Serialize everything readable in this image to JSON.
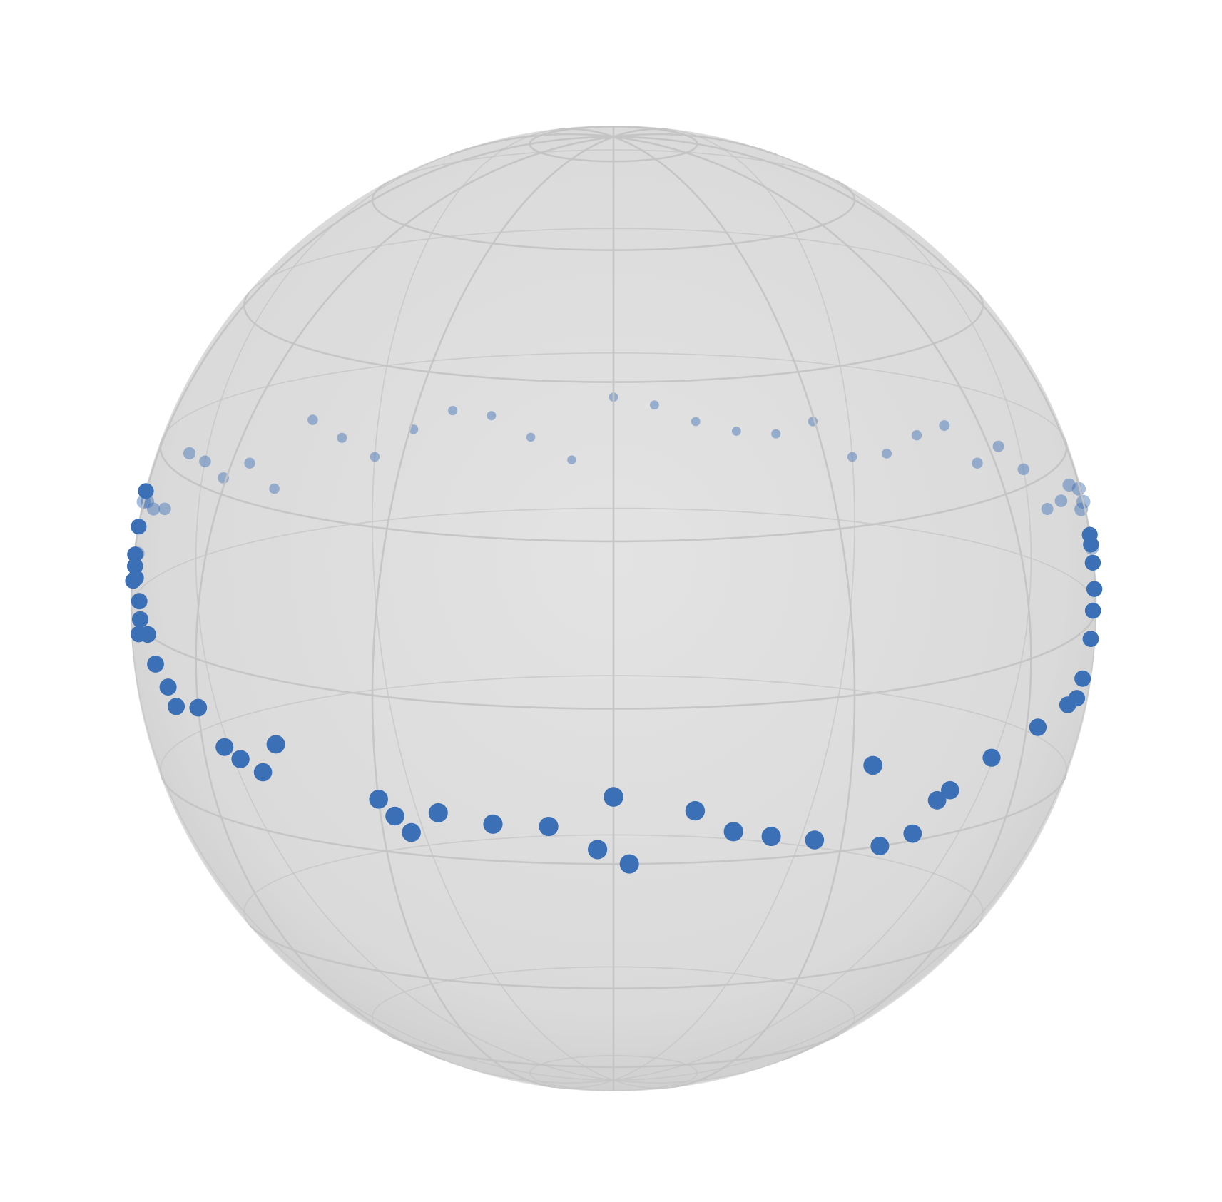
{
  "chart_data": {
    "type": "scatter",
    "projection": "3d-sphere",
    "title": "",
    "xlabel": "",
    "ylabel": "",
    "zlabel": "",
    "grid": true,
    "legend": "none",
    "sphere": {
      "fill_color": "#d9d9d9",
      "grid_color": "#c4c4c4",
      "latitude_lines_deg": [
        -80,
        -60,
        -40,
        -20,
        0,
        20,
        40,
        60,
        80
      ],
      "longitude_lines_deg": [
        0,
        30,
        60,
        90,
        120,
        150,
        180,
        210,
        240,
        270,
        300,
        330
      ]
    },
    "view": {
      "elevation_deg": 12,
      "azimuth_deg": 0
    },
    "marker_color": "#3b6fb6",
    "series": [
      {
        "points_lon_lat_deg": [
          [
            -90,
            10
          ],
          [
            -84,
            5
          ],
          [
            -80,
            3
          ],
          [
            -75,
            0
          ],
          [
            -72,
            -3
          ],
          [
            -68,
            -5
          ],
          [
            -66,
            -7
          ],
          [
            -60,
            -6
          ],
          [
            -55,
            -10
          ],
          [
            -52,
            -11
          ],
          [
            -48,
            -12
          ],
          [
            -45,
            -8
          ],
          [
            -30,
            -13
          ],
          [
            -28,
            -15
          ],
          [
            -26,
            -17
          ],
          [
            -22,
            -14
          ],
          [
            -15,
            -15
          ],
          [
            -8,
            -15
          ],
          [
            0,
            -11
          ],
          [
            -2,
            -18
          ],
          [
            2,
            -20
          ],
          [
            10,
            -13
          ],
          [
            15,
            -16
          ],
          [
            20,
            -17
          ],
          [
            26,
            -18
          ],
          [
            33,
            -9
          ],
          [
            36,
            -20
          ],
          [
            41,
            -19
          ],
          [
            44,
            -15
          ],
          [
            46,
            -14
          ],
          [
            53,
            -11
          ],
          [
            63,
            -9
          ],
          [
            72,
            -8
          ],
          [
            76,
            -8
          ],
          [
            78,
            -6
          ],
          [
            82,
            -2
          ],
          [
            84,
            1
          ],
          [
            87,
            3
          ],
          [
            88,
            6
          ],
          [
            89,
            8
          ],
          [
            90,
            9
          ],
          [
            -88,
            7
          ],
          [
            -87,
            4
          ],
          [
            -86,
            6
          ],
          [
            -80,
            -1
          ],
          [
            -79,
            1
          ],
          [
            -120,
            12
          ],
          [
            -140,
            14
          ],
          [
            -160,
            13
          ],
          [
            180,
            14
          ],
          [
            160,
            10
          ],
          [
            140,
            12
          ],
          [
            120,
            11
          ],
          [
            100,
            10
          ],
          [
            -100,
            11
          ],
          [
            -110,
            8
          ],
          [
            -130,
            10
          ],
          [
            -150,
            8
          ],
          [
            -170,
            9
          ],
          [
            170,
            11
          ],
          [
            150,
            8
          ],
          [
            130,
            10
          ],
          [
            110,
            9
          ],
          [
            -95,
            12
          ],
          [
            95,
            12
          ],
          [
            -125,
            9
          ],
          [
            125,
            13
          ],
          [
            -145,
            11
          ],
          [
            145,
            9
          ],
          [
            -165,
            12
          ],
          [
            165,
            10
          ],
          [
            -175,
            6
          ],
          [
            175,
            13
          ],
          [
            -115,
            14
          ],
          [
            115,
            7
          ],
          [
            -135,
            6
          ],
          [
            135,
            14
          ],
          [
            -155,
            11
          ],
          [
            155,
            12
          ],
          [
            -105,
            9
          ],
          [
            105,
            12
          ],
          [
            -92,
            14
          ],
          [
            92,
            7
          ],
          [
            -98,
            5
          ],
          [
            98,
            13
          ]
        ]
      }
    ]
  }
}
